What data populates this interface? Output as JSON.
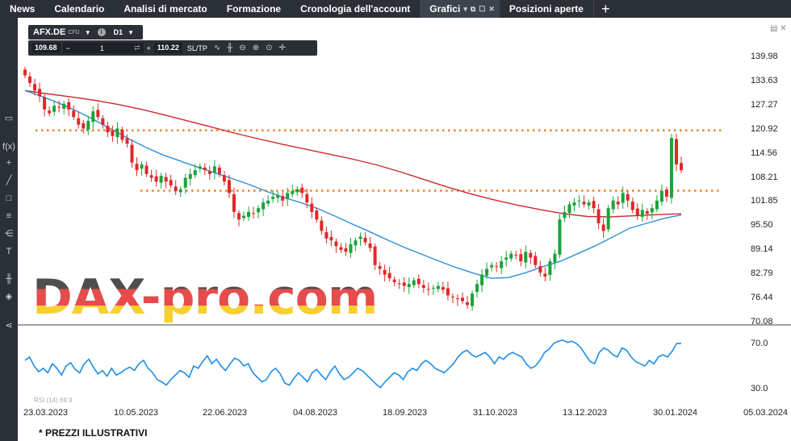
{
  "nav": {
    "tabs": [
      {
        "label": "News"
      },
      {
        "label": "Calendario"
      },
      {
        "label": "Analisi di mercato"
      },
      {
        "label": "Formazione"
      },
      {
        "label": "Cronologia dell'account"
      },
      {
        "label": "Grafici",
        "active": true
      },
      {
        "label": "Posizioni aperte"
      }
    ],
    "plus": "+"
  },
  "symbol": {
    "name": "AFX.DE",
    "type": "CFD",
    "timeframe": "D1"
  },
  "trade": {
    "sell_price": "109.68",
    "minus": "−",
    "quantity": "1",
    "plus": "+",
    "buy_price": "110.22",
    "sltp": "SL/TP"
  },
  "chart_data": {
    "type": "candlestick",
    "price_axis": [
      "139.98",
      "133.63",
      "127.27",
      "120.92",
      "114.56",
      "108.21",
      "101.85",
      "95.50",
      "89.14",
      "82.79",
      "76.44",
      "70.08"
    ],
    "date_axis": [
      "23.03.2023",
      "10.05.2023",
      "22.06.2023",
      "04.08.2023",
      "18.09.2023",
      "31.10.2023",
      "13.12.2023",
      "30.01.2024",
      "05.03.2024"
    ],
    "rsi_axis": [
      "70.0",
      "30.0"
    ],
    "rsi_label": "RSI (14) 69.9",
    "horizontal_levels": [
      120.5,
      104.6
    ],
    "ylim": [
      70.08,
      143
    ],
    "close": [
      135,
      133,
      131,
      129.5,
      126,
      125,
      127,
      126.5,
      127.5,
      126,
      124,
      122,
      121,
      123,
      125.5,
      124,
      122,
      120,
      119,
      121,
      118,
      117,
      112,
      110,
      111.5,
      109,
      108,
      107,
      108.5,
      107,
      106,
      104.5,
      105,
      108,
      109,
      110,
      111,
      110,
      109,
      111,
      109,
      107,
      104,
      99,
      97,
      98,
      99,
      98.5,
      100,
      101.5,
      102,
      103,
      103.5,
      102,
      104,
      104.5,
      105,
      104,
      101.5,
      99,
      97,
      94,
      92,
      91.5,
      90,
      89,
      88.5,
      90.5,
      91.5,
      92.5,
      91,
      89.5,
      85,
      84,
      82.5,
      81.5,
      80.5,
      80,
      79.5,
      80,
      81,
      80,
      79,
      78.5,
      79,
      79.5,
      78.5,
      77,
      76.5,
      76,
      75.5,
      74.5,
      77.5,
      80,
      82.5,
      84,
      85,
      84.5,
      86,
      87,
      88,
      87.5,
      86,
      88.5,
      87,
      85,
      83,
      82,
      86,
      88,
      97,
      99,
      101,
      101.5,
      102,
      101,
      101.5,
      100,
      96,
      94,
      100,
      102,
      101,
      104,
      102,
      99.5,
      98,
      99.5,
      98.5,
      100,
      102,
      104.5,
      103,
      118.5,
      111.5,
      110
    ],
    "sma_fast": [
      131,
      129.4,
      127.6,
      125.6,
      123.3,
      120.8,
      118.3,
      116,
      114,
      112.4,
      110.8,
      109.3,
      107.8,
      106.2,
      104.4,
      102.8,
      101.4,
      99.8,
      97.8,
      95.7,
      93.7,
      91.6,
      89.6,
      87.8,
      86,
      84.3,
      82.8,
      81.5,
      81.7,
      83,
      84.6,
      86,
      88,
      90,
      92.3,
      94.7,
      96,
      97.3,
      98.2
    ],
    "sma_slow": [
      131,
      130.1,
      129.3,
      128.4,
      127.3,
      126,
      124.5,
      122.9,
      121.3,
      119.7,
      118.2,
      116.8,
      115.5,
      114.2,
      112.9,
      111.4,
      109.6,
      107.6,
      105.6,
      103.8,
      102.2,
      100.8,
      99.6,
      98.5,
      97.8,
      97.7,
      98,
      98.3,
      98.5
    ],
    "rsi": [
      55,
      58,
      50,
      45,
      48,
      44,
      52,
      48,
      42,
      50,
      53,
      47,
      44,
      52,
      56,
      49,
      43,
      46,
      41,
      48,
      42,
      44,
      47,
      49,
      46,
      52,
      55,
      48,
      44,
      38,
      36,
      33,
      38,
      42,
      46,
      44,
      40,
      50,
      48,
      54,
      59,
      52,
      56,
      50,
      46,
      52,
      57,
      55,
      50,
      52,
      44,
      40,
      36,
      38,
      45,
      48,
      43,
      35,
      33,
      39,
      44,
      40,
      36,
      44,
      47,
      42,
      38,
      45,
      50,
      43,
      38,
      40,
      44,
      48,
      46,
      42,
      38,
      34,
      31,
      36,
      40,
      44,
      42,
      38,
      45,
      48,
      46,
      52,
      55,
      52,
      48,
      46,
      44,
      48,
      52,
      58,
      62,
      64,
      60,
      58,
      60,
      62,
      58,
      52,
      58,
      56,
      60,
      62,
      60,
      58,
      52,
      48,
      50,
      55,
      62,
      65,
      70,
      72,
      73,
      71,
      72,
      70,
      66,
      60,
      54,
      52,
      62,
      66,
      64,
      60,
      58,
      66,
      64,
      58,
      54,
      52,
      50,
      55,
      52,
      58,
      60,
      58,
      63,
      70,
      69.9
    ]
  },
  "watermark": "DAX-pro.com",
  "footnote": "* PREZZI ILLUSTRATIVI"
}
